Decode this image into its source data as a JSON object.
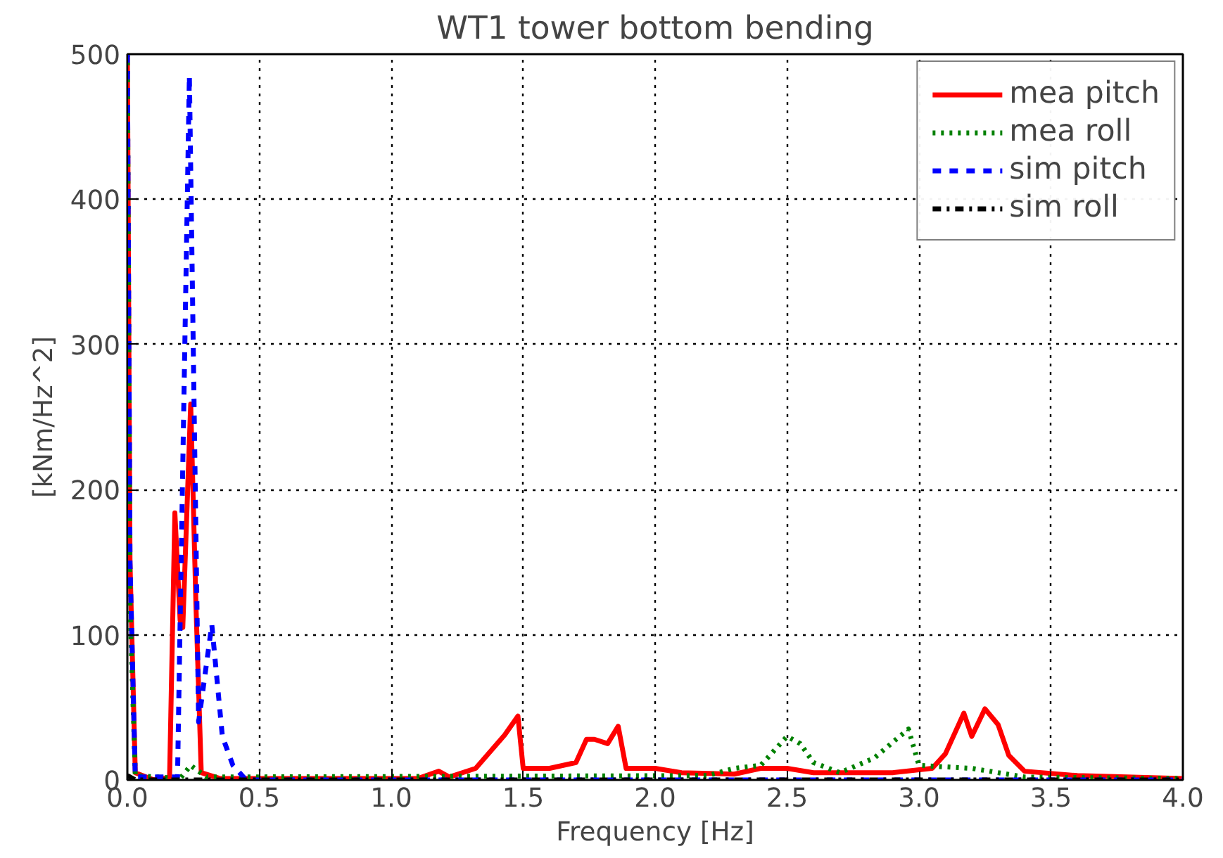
{
  "chart_data": {
    "type": "line",
    "title": "WT1 tower bottom bending",
    "xlabel": "Frequency [Hz]",
    "ylabel": "[kNm/Hz^2]",
    "xlim": [
      0,
      4
    ],
    "ylim": [
      0,
      500
    ],
    "xticks": [
      {
        "value": 0,
        "label": "0.0"
      },
      0.5,
      {
        "value": 1,
        "label": "1.0"
      },
      1.5,
      {
        "value": 2,
        "label": "2.0"
      },
      2.5,
      {
        "value": 3,
        "label": "3.0"
      },
      3.5,
      {
        "value": 4,
        "label": "4.0"
      }
    ],
    "yticks": [
      0,
      100,
      200,
      300,
      400,
      500
    ],
    "grid": true,
    "legend": "top right",
    "series": [
      {
        "name": "mea pitch",
        "color": "#ff0000",
        "line_style": "solid",
        "x": [
          0,
          0.01,
          0.03,
          0.1,
          0.16,
          0.18,
          0.2,
          0.21,
          0.24,
          0.26,
          0.28,
          0.35,
          1.1,
          1.18,
          1.22,
          1.32,
          1.43,
          1.48,
          1.5,
          1.6,
          1.7,
          1.74,
          1.77,
          1.82,
          1.86,
          1.89,
          2.0,
          2.1,
          2.3,
          2.4,
          2.5,
          2.6,
          2.9,
          3.05,
          3.1,
          3.17,
          3.2,
          3.25,
          3.3,
          3.34,
          3.4,
          3.6,
          4.0
        ],
        "values": [
          500,
          150,
          5,
          0,
          2,
          184,
          110,
          105,
          259,
          120,
          5,
          1,
          1,
          6,
          2,
          8,
          31,
          44,
          8,
          8,
          12,
          28,
          28,
          25,
          37,
          8,
          8,
          5,
          4,
          8,
          8,
          5,
          5,
          8,
          18,
          46,
          30,
          49,
          38,
          17,
          6,
          3,
          1
        ]
      },
      {
        "name": "mea roll",
        "color": "#008000",
        "line_style": "dotted",
        "x": [
          0,
          0.01,
          0.03,
          0.2,
          0.24,
          0.3,
          2.2,
          2.3,
          2.4,
          2.5,
          2.55,
          2.6,
          2.7,
          2.83,
          2.92,
          2.96,
          3.0,
          3.2,
          3.4,
          4.0
        ],
        "values": [
          500,
          120,
          3,
          1,
          10,
          2,
          3,
          8,
          10,
          30,
          25,
          12,
          5,
          15,
          29,
          35,
          10,
          8,
          2,
          1
        ]
      },
      {
        "name": "sim pitch",
        "color": "#0000ff",
        "line_style": "dashed",
        "x": [
          0,
          0.01,
          0.03,
          0.19,
          0.235,
          0.27,
          0.32,
          0.36,
          0.4,
          0.45,
          1.0,
          4.0
        ],
        "values": [
          500,
          150,
          2,
          2,
          485,
          40,
          107,
          30,
          10,
          0,
          0,
          0
        ]
      },
      {
        "name": "sim roll",
        "color": "#000000",
        "line_style": "dashdot",
        "x": [
          0,
          0.01,
          0.03,
          1.0,
          4.0
        ],
        "values": [
          3,
          2,
          0,
          0,
          0
        ]
      }
    ]
  }
}
